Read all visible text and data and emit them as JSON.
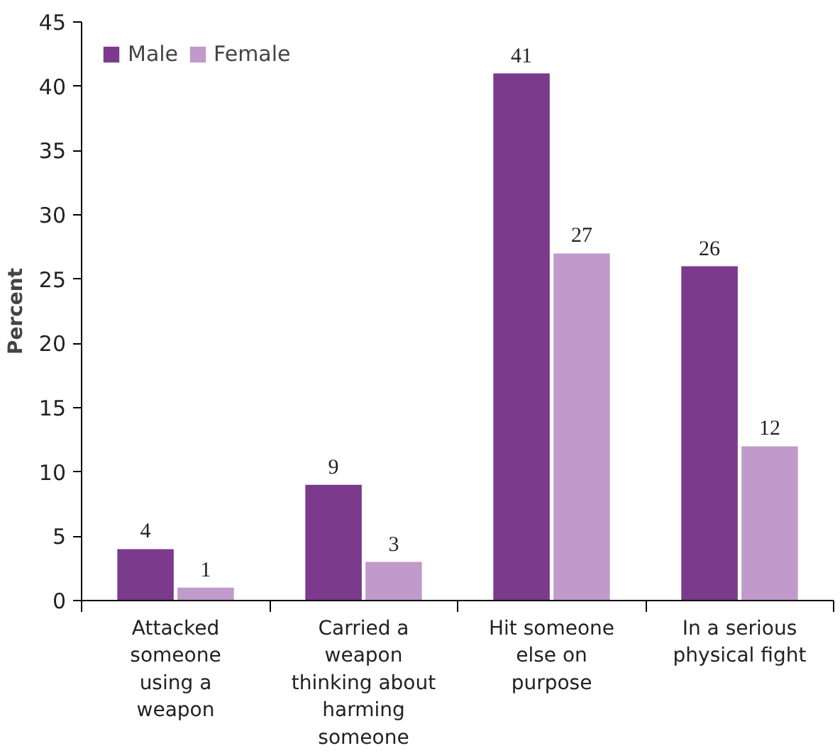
{
  "chart_data": {
    "type": "bar",
    "ylabel": "Percent",
    "categories": [
      "Attacked\nsomeone\nusing a\nweapon",
      "Carried a\nweapon\nthinking about\nharming\nsomeone",
      "Hit someone\nelse on\npurpose",
      "In a serious\nphysical fight"
    ],
    "series": [
      {
        "name": "Male",
        "color": "#7b3a8b",
        "values": [
          4,
          9,
          41,
          26
        ]
      },
      {
        "name": "Female",
        "color": "#c09aca",
        "values": [
          1,
          3,
          27,
          12
        ]
      }
    ],
    "ylim": [
      0,
      45
    ],
    "yticks": [
      0,
      5,
      10,
      15,
      20,
      25,
      30,
      35,
      40,
      45
    ],
    "data_labels": true,
    "legend": "top left",
    "grid": false
  }
}
